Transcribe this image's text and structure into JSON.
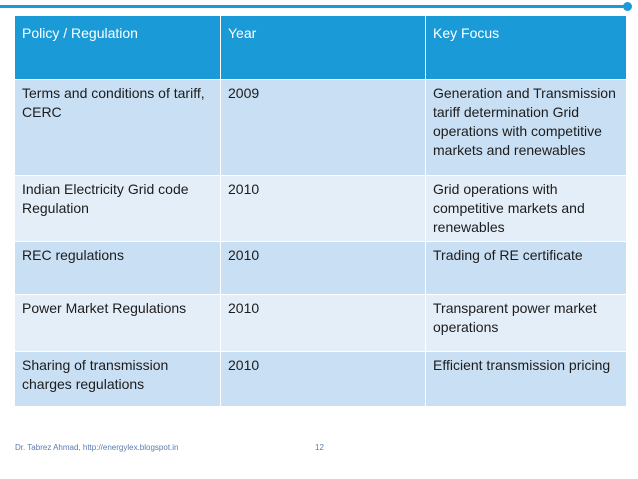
{
  "accent": "#1a9bd7",
  "table": {
    "headers": [
      "Policy / Regulation",
      "Year",
      "Key Focus"
    ],
    "rows": [
      [
        "Terms and conditions of tariff, CERC",
        "2009",
        "Generation and Transmission tariff determination Grid operations with competitive markets and renewables"
      ],
      [
        "Indian Electricity Grid code Regulation",
        "2010",
        "Grid operations with competitive markets and renewables"
      ],
      [
        "REC regulations",
        "2010",
        "Trading of RE certificate"
      ],
      [
        "Power Market Regulations",
        "2010",
        "Transparent power market operations"
      ],
      [
        "Sharing of transmission charges regulations",
        "2010",
        "Efficient transmission pricing"
      ]
    ]
  },
  "footer": {
    "author": "Dr. Tabrez Ahmad, http://energylex.blogspot.in",
    "page_number": "12"
  }
}
